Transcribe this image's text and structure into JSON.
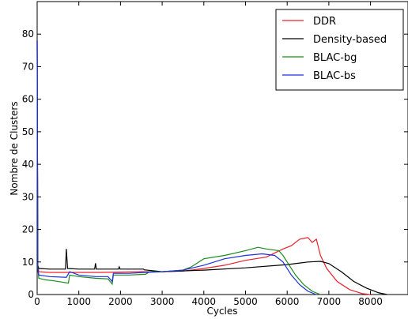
{
  "chart_data": {
    "type": "line",
    "title": "",
    "xlabel": "Cycles",
    "ylabel": "Nombre de Clusters",
    "xlim": [
      0,
      8900
    ],
    "ylim": [
      0,
      90
    ],
    "xticks": [
      0,
      1000,
      2000,
      3000,
      4000,
      5000,
      6000,
      7000,
      8000
    ],
    "yticks": [
      0,
      10,
      20,
      30,
      40,
      50,
      60,
      70,
      80
    ],
    "grid": false,
    "legend_position": "top-right",
    "series": [
      {
        "name": "DDR",
        "color": "#e8202a",
        "points": [
          [
            0,
            78
          ],
          [
            15,
            9
          ],
          [
            40,
            7
          ],
          [
            300,
            6.8
          ],
          [
            800,
            6.8
          ],
          [
            1500,
            6.8
          ],
          [
            2500,
            7
          ],
          [
            3000,
            7
          ],
          [
            3500,
            7.2
          ],
          [
            4000,
            8
          ],
          [
            4500,
            9
          ],
          [
            5000,
            10.5
          ],
          [
            5500,
            11.5
          ],
          [
            5900,
            14
          ],
          [
            6100,
            15
          ],
          [
            6300,
            17
          ],
          [
            6500,
            17.5
          ],
          [
            6600,
            16
          ],
          [
            6700,
            17
          ],
          [
            6800,
            12
          ],
          [
            6950,
            8
          ],
          [
            7200,
            4
          ],
          [
            7500,
            1.5
          ],
          [
            7800,
            0.3
          ],
          [
            8000,
            0
          ]
        ]
      },
      {
        "name": "Density-based",
        "color": "#000000",
        "points": [
          [
            0,
            78
          ],
          [
            15,
            9
          ],
          [
            40,
            8
          ],
          [
            300,
            7.8
          ],
          [
            680,
            7.8
          ],
          [
            700,
            14
          ],
          [
            730,
            8
          ],
          [
            1000,
            7.8
          ],
          [
            1380,
            7.8
          ],
          [
            1400,
            9.6
          ],
          [
            1420,
            7.8
          ],
          [
            1950,
            7.8
          ],
          [
            1970,
            8.5
          ],
          [
            1990,
            7.8
          ],
          [
            2550,
            7.8
          ],
          [
            2570,
            7.6
          ],
          [
            3000,
            7
          ],
          [
            4000,
            7.5
          ],
          [
            5000,
            8.2
          ],
          [
            6000,
            9.2
          ],
          [
            6500,
            10
          ],
          [
            6800,
            10.2
          ],
          [
            7000,
            9.5
          ],
          [
            7300,
            7
          ],
          [
            7600,
            4
          ],
          [
            7900,
            2
          ],
          [
            8200,
            0.5
          ],
          [
            8400,
            0
          ]
        ]
      },
      {
        "name": "BLAC-bg",
        "color": "#1a8c1a",
        "points": [
          [
            0,
            78
          ],
          [
            15,
            8
          ],
          [
            40,
            5
          ],
          [
            200,
            4.5
          ],
          [
            400,
            4.2
          ],
          [
            600,
            3.8
          ],
          [
            750,
            3.5
          ],
          [
            780,
            6
          ],
          [
            1000,
            5.5
          ],
          [
            1400,
            5
          ],
          [
            1700,
            4.8
          ],
          [
            1800,
            3.2
          ],
          [
            1830,
            6
          ],
          [
            2200,
            6
          ],
          [
            2600,
            6.2
          ],
          [
            2700,
            7
          ],
          [
            3000,
            7
          ],
          [
            3500,
            7.5
          ],
          [
            3700,
            8.5
          ],
          [
            4000,
            11
          ],
          [
            4500,
            12
          ],
          [
            5000,
            13.5
          ],
          [
            5300,
            14.5
          ],
          [
            5500,
            14
          ],
          [
            5800,
            13.5
          ],
          [
            5900,
            12
          ],
          [
            6000,
            10
          ],
          [
            6200,
            6
          ],
          [
            6400,
            3
          ],
          [
            6600,
            1
          ],
          [
            6800,
            0
          ]
        ]
      },
      {
        "name": "BLAC-bs",
        "color": "#1c2ed8",
        "points": [
          [
            0,
            78
          ],
          [
            15,
            8
          ],
          [
            40,
            6
          ],
          [
            300,
            5.5
          ],
          [
            700,
            5.3
          ],
          [
            780,
            7
          ],
          [
            1000,
            6
          ],
          [
            1400,
            5.5
          ],
          [
            1700,
            5.5
          ],
          [
            1800,
            4
          ],
          [
            1830,
            6.5
          ],
          [
            2200,
            6.5
          ],
          [
            2600,
            6.8
          ],
          [
            3000,
            7
          ],
          [
            3500,
            7.5
          ],
          [
            4000,
            9
          ],
          [
            4500,
            11
          ],
          [
            5000,
            12
          ],
          [
            5400,
            12.5
          ],
          [
            5700,
            12
          ],
          [
            5900,
            10
          ],
          [
            6100,
            6
          ],
          [
            6300,
            3
          ],
          [
            6500,
            1
          ],
          [
            6700,
            0
          ]
        ]
      }
    ]
  }
}
